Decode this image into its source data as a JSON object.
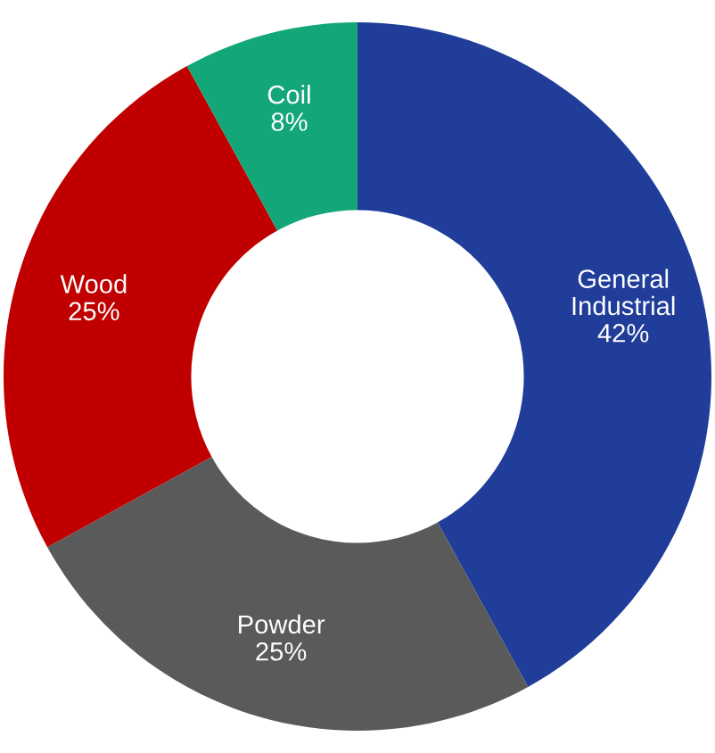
{
  "chart_data": {
    "type": "donut",
    "categories": [
      "General\nIndustrial",
      "Powder",
      "Wood",
      "Coil"
    ],
    "values": [
      42,
      25,
      25,
      8
    ],
    "colors": [
      "#1f3d99",
      "#5a5a5a",
      "#c00000",
      "#13a678"
    ],
    "value_labels": [
      "42%",
      "25%",
      "25%",
      "8%"
    ]
  }
}
